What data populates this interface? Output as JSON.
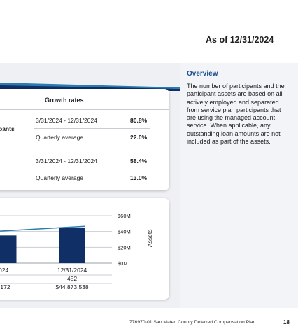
{
  "header": {
    "as_of": "As of 12/31/2024"
  },
  "overview": {
    "title": "Overview",
    "text": "The number of participants and the participant assets are based on all actively employed and separated from service plan participants that are using the managed account service. When applicable, any outstanding loan amounts are not included as part of the assets."
  },
  "growth": {
    "header": "Growth rates",
    "row_label_fragment": "pants",
    "participants": [
      {
        "period": "3/31/2024 - 12/31/2024",
        "value": "80.8%"
      },
      {
        "period": "Quarterly average",
        "value": "22.0%"
      }
    ],
    "assets": [
      {
        "period": "3/31/2024 - 12/31/2024",
        "value": "58.4%"
      },
      {
        "period": "Quarterly average",
        "value": "13.0%"
      }
    ]
  },
  "chart_data": {
    "type": "bar",
    "ylabel": "Assets",
    "yticks": [
      "$0M",
      "$20M",
      "$40M",
      "$60M"
    ],
    "ylim": [
      0,
      60
    ],
    "grid": true,
    "categories": [
      "024",
      "12/31/2024"
    ],
    "bar_values": [
      35,
      44.873538
    ],
    "line_values": [
      40,
      46.5
    ],
    "table": {
      "participants": [
        "",
        "452"
      ],
      "assets": [
        ",172",
        "$44,873,538"
      ]
    },
    "colors": {
      "bar": "#0f2f66",
      "line": "#2a7bb0"
    }
  },
  "footer": {
    "text": "776970-01 San Mateo County Deferred Compensation Plan",
    "page": "18"
  }
}
